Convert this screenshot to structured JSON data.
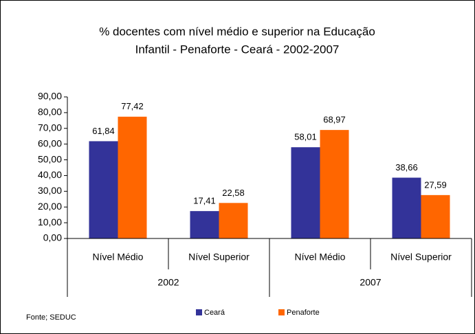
{
  "chart_data": {
    "type": "bar",
    "title": [
      "% docentes com nível médio e superior na  Educação",
      "Infantil - Penaforte - Ceará - 2002-2007"
    ],
    "categories": [
      "Nível Médio",
      "Nível Superior",
      "Nível Médio",
      "Nível Superior"
    ],
    "groups": [
      "2002",
      "2007"
    ],
    "series": [
      {
        "name": "Ceará",
        "color": "#333399",
        "values": [
          61.84,
          17.41,
          58.01,
          38.66
        ],
        "value_labels": [
          "61,84",
          "17,41",
          "58,01",
          "38,66"
        ]
      },
      {
        "name": "Penaforte",
        "color": "#ff6600",
        "values": [
          77.42,
          22.58,
          68.97,
          27.59
        ],
        "value_labels": [
          "77,42",
          "22,58",
          "68,97",
          "27,59"
        ]
      }
    ],
    "ylim": [
      0,
      90
    ],
    "yticks": [
      {
        "value": 0,
        "label": "0,00"
      },
      {
        "value": 10,
        "label": "10,00"
      },
      {
        "value": 20,
        "label": "20,00"
      },
      {
        "value": 30,
        "label": "30,00"
      },
      {
        "value": 40,
        "label": "40,00"
      },
      {
        "value": 50,
        "label": "50,00"
      },
      {
        "value": 60,
        "label": "60,00"
      },
      {
        "value": 70,
        "label": "70,00"
      },
      {
        "value": 80,
        "label": "80,00"
      },
      {
        "value": 90,
        "label": "90,00"
      }
    ],
    "source": "Fonte; SEDUC"
  }
}
